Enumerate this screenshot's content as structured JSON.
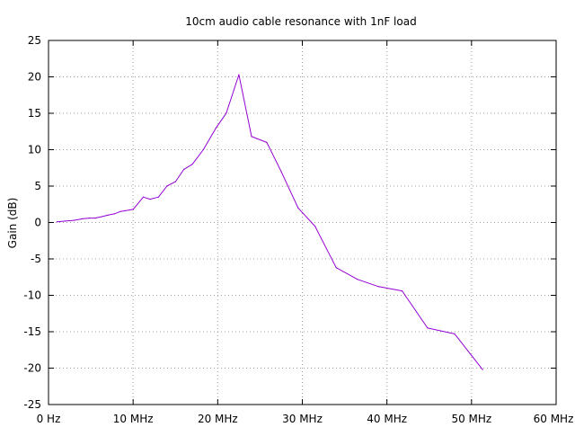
{
  "colors": {
    "series": "#9400d3",
    "grid": "#a0a0a0",
    "axis": "#000000",
    "background": "#ffffff"
  },
  "chart_data": {
    "type": "line",
    "title": "10cm audio cable resonance with 1nF load",
    "xlabel": "",
    "ylabel": "Gain (dB)",
    "xlim": [
      0,
      60
    ],
    "ylim": [
      -25,
      25
    ],
    "grid": true,
    "legend": "none",
    "x_ticks": [
      {
        "value": 0,
        "label": "0  Hz"
      },
      {
        "value": 10,
        "label": "10 MHz"
      },
      {
        "value": 20,
        "label": "20 MHz"
      },
      {
        "value": 30,
        "label": "30 MHz"
      },
      {
        "value": 40,
        "label": "40 MHz"
      },
      {
        "value": 50,
        "label": "50 MHz"
      },
      {
        "value": 60,
        "label": "60 MHz"
      }
    ],
    "y_ticks": [
      {
        "value": 25,
        "label": "25"
      },
      {
        "value": 20,
        "label": "20"
      },
      {
        "value": 15,
        "label": "15"
      },
      {
        "value": 10,
        "label": "10"
      },
      {
        "value": 5,
        "label": "5"
      },
      {
        "value": 0,
        "label": "0"
      },
      {
        "value": -5,
        "label": "-5"
      },
      {
        "value": -10,
        "label": "-10"
      },
      {
        "value": -15,
        "label": "-15"
      },
      {
        "value": -20,
        "label": "-20"
      },
      {
        "value": -25,
        "label": "-25"
      }
    ],
    "series": [
      {
        "x": [
          1.0,
          2.0,
          3.0,
          4.0,
          4.8,
          5.5,
          6.3,
          7.0,
          7.8,
          8.5,
          9.0,
          10.0,
          11.2,
          12.0,
          13.0,
          14.0,
          15.0,
          16.0,
          17.0,
          18.3,
          19.8,
          21.0,
          22.5,
          24.0,
          25.8,
          27.5,
          29.5,
          31.5,
          34.0,
          36.5,
          39.0,
          41.8,
          44.8,
          48.0,
          51.3
        ],
        "y": [
          0.1,
          0.2,
          0.3,
          0.5,
          0.6,
          0.6,
          0.8,
          1.0,
          1.2,
          1.5,
          1.6,
          1.8,
          3.5,
          3.2,
          3.5,
          5.0,
          5.6,
          7.3,
          8.0,
          10.0,
          13.0,
          15.0,
          20.3,
          11.8,
          11.0,
          7.0,
          2.0,
          -0.5,
          -6.2,
          -7.8,
          -8.8,
          -9.4,
          -14.5,
          -15.3,
          -20.2
        ]
      }
    ]
  }
}
